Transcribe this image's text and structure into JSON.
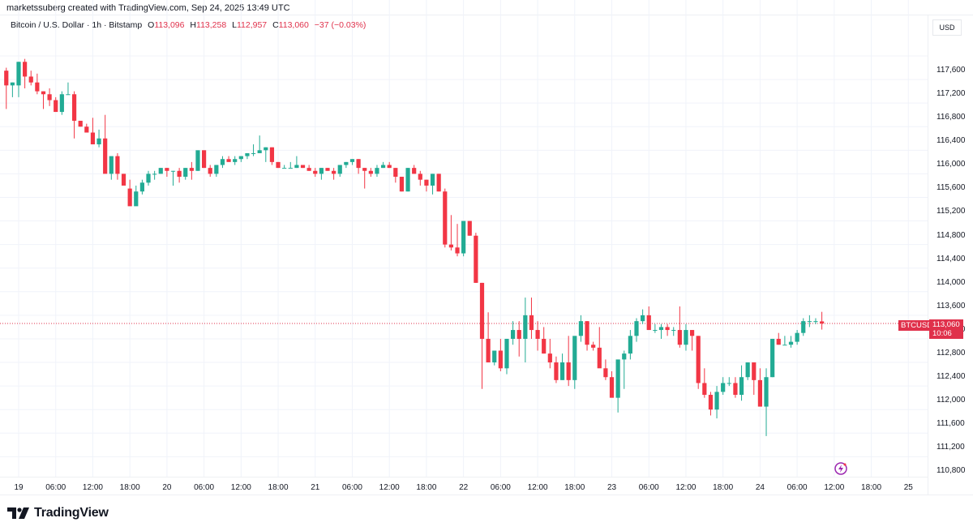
{
  "header": {
    "credit": "marketssuberg created with TradingView.com, Sep 24, 2025 13:49 UTC"
  },
  "legend": {
    "symbol": "Bitcoin / U.S. Dollar · 1h · Bitstamp",
    "o_label": "O",
    "o_value": "113,096",
    "h_label": "H",
    "h_value": "113,258",
    "l_label": "L",
    "l_value": "112,957",
    "c_label": "C",
    "c_value": "113,060",
    "change": "−37 (−0.03%)"
  },
  "price_axis": {
    "currency": "USD",
    "ticks": [
      "117,600",
      "117,200",
      "116,800",
      "116,400",
      "116,000",
      "115,600",
      "115,200",
      "114,800",
      "114,400",
      "114,000",
      "113,600",
      "113,200",
      "112,800",
      "112,400",
      "112,000",
      "111,600",
      "111,200",
      "110,800"
    ]
  },
  "time_axis": {
    "ticks": [
      "19",
      "06:00",
      "12:00",
      "18:00",
      "20",
      "06:00",
      "12:00",
      "18:00",
      "21",
      "06:00",
      "12:00",
      "18:00",
      "22",
      "06:00",
      "12:00",
      "18:00",
      "23",
      "06:00",
      "12:00",
      "18:00",
      "24",
      "06:00",
      "12:00",
      "18:00",
      "25"
    ]
  },
  "last_price": {
    "symbol": "BTCUSD",
    "price": "113,060",
    "countdown": "10:06"
  },
  "branding": {
    "logo_text": "TradingView"
  },
  "colors": {
    "up": "#22ab94",
    "down": "#f23645",
    "price_line": "#e0314b",
    "grid": "#f0f3fa"
  },
  "chart_data": {
    "type": "candlestick",
    "title": "Bitcoin / U.S. Dollar · 1h · Bitstamp",
    "xlabel": "",
    "ylabel": "USD",
    "ylim": [
      110600,
      117900
    ],
    "grid": true,
    "interval": "1h",
    "x_start": "Sep 18 22:00",
    "ohlc": [
      [
        117350,
        117400,
        116700,
        117100
      ],
      [
        117100,
        117150,
        116900,
        117150
      ],
      [
        117100,
        117500,
        116900,
        117500
      ],
      [
        117500,
        117550,
        117050,
        117250
      ],
      [
        117250,
        117350,
        117100,
        117150
      ],
      [
        117150,
        117300,
        116950,
        117000
      ],
      [
        117000,
        117000,
        116700,
        116950
      ],
      [
        116950,
        117050,
        116750,
        116850
      ],
      [
        116850,
        116900,
        116750,
        116650
      ],
      [
        116650,
        117000,
        116600,
        116950
      ],
      [
        116950,
        117150,
        116950,
        116950
      ],
      [
        116950,
        117000,
        116200,
        116500
      ],
      [
        116500,
        116500,
        116400,
        116400
      ],
      [
        116400,
        116450,
        116300,
        116300
      ],
      [
        116300,
        116550,
        116200,
        116100
      ],
      [
        116100,
        116350,
        116050,
        116200
      ],
      [
        116200,
        116600,
        115800,
        115600
      ],
      [
        115600,
        115800,
        115500,
        115900
      ],
      [
        115900,
        115950,
        115500,
        115600
      ],
      [
        115600,
        115600,
        115450,
        115400
      ],
      [
        115350,
        115500,
        115200,
        115050
      ],
      [
        115050,
        115400,
        115100,
        115300
      ],
      [
        115300,
        115500,
        115250,
        115450
      ],
      [
        115450,
        115650,
        115400,
        115600
      ],
      [
        115600,
        115650,
        115500,
        115600
      ],
      [
        115600,
        115700,
        115600,
        115700
      ],
      [
        115700,
        115700,
        115550,
        115650
      ],
      [
        115650,
        115650,
        115400,
        115650
      ],
      [
        115650,
        115700,
        115450,
        115550
      ],
      [
        115550,
        115700,
        115500,
        115700
      ],
      [
        115700,
        115800,
        115500,
        115650
      ],
      [
        115650,
        115700,
        115650,
        116000
      ],
      [
        116000,
        116000,
        115700,
        115700
      ],
      [
        115700,
        115750,
        115550,
        115600
      ],
      [
        115600,
        115700,
        115550,
        115750
      ],
      [
        115750,
        115900,
        115700,
        115850
      ],
      [
        115850,
        115900,
        115850,
        115800
      ],
      [
        115800,
        115900,
        115750,
        115850
      ],
      [
        115850,
        115900,
        115800,
        115900
      ],
      [
        115900,
        115950,
        115850,
        115950
      ],
      [
        115950,
        116100,
        115900,
        115950
      ],
      [
        115950,
        116250,
        115950,
        116000
      ],
      [
        116000,
        116050,
        115800,
        116050
      ],
      [
        116050,
        116050,
        115750,
        115800
      ],
      [
        115800,
        115800,
        115700,
        115700
      ],
      [
        115700,
        115750,
        115700,
        115700
      ],
      [
        115700,
        115800,
        115700,
        115700
      ],
      [
        115700,
        115900,
        115700,
        115750
      ],
      [
        115750,
        115750,
        115700,
        115700
      ],
      [
        115700,
        115750,
        115650,
        115650
      ],
      [
        115650,
        115700,
        115550,
        115600
      ],
      [
        115600,
        115700,
        115500,
        115700
      ],
      [
        115700,
        115700,
        115650,
        115650
      ],
      [
        115650,
        115700,
        115500,
        115600
      ],
      [
        115600,
        115700,
        115550,
        115750
      ],
      [
        115750,
        115800,
        115700,
        115800
      ],
      [
        115800,
        115850,
        115750,
        115850
      ],
      [
        115850,
        115850,
        115600,
        115700
      ],
      [
        115700,
        115700,
        115350,
        115650
      ],
      [
        115650,
        115700,
        115550,
        115600
      ],
      [
        115600,
        115750,
        115550,
        115700
      ],
      [
        115700,
        115800,
        115700,
        115750
      ],
      [
        115750,
        115800,
        115700,
        115700
      ],
      [
        115700,
        115700,
        115450,
        115550
      ],
      [
        115550,
        115550,
        115300,
        115300
      ],
      [
        115300,
        115700,
        115300,
        115700
      ],
      [
        115700,
        115750,
        115600,
        115600
      ],
      [
        115600,
        115650,
        115400,
        115500
      ],
      [
        115500,
        115500,
        115300,
        115400
      ],
      [
        115400,
        115600,
        115250,
        115600
      ],
      [
        115600,
        115600,
        115300,
        115300
      ],
      [
        115300,
        115350,
        114350,
        114400
      ],
      [
        114400,
        114900,
        114300,
        114350
      ],
      [
        114350,
        114750,
        114200,
        114250
      ],
      [
        114250,
        114800,
        114200,
        114800
      ],
      [
        114800,
        114800,
        114550,
        114550
      ],
      [
        114550,
        114600,
        113750,
        113750
      ],
      [
        113750,
        113750,
        111950,
        112800
      ],
      [
        112800,
        113250,
        112600,
        112400
      ],
      [
        112400,
        112550,
        112350,
        112600
      ],
      [
        112600,
        112800,
        112250,
        112300
      ],
      [
        112300,
        112800,
        112200,
        112800
      ],
      [
        112800,
        113100,
        112700,
        112950
      ],
      [
        112950,
        113100,
        112500,
        112800
      ],
      [
        112800,
        113500,
        112400,
        113200
      ],
      [
        113200,
        113500,
        112800,
        112950
      ],
      [
        112950,
        113100,
        112600,
        112800
      ],
      [
        112800,
        113000,
        112550,
        112550
      ],
      [
        112550,
        112800,
        112300,
        112400
      ],
      [
        112400,
        112500,
        112050,
        112100
      ],
      [
        112100,
        112550,
        112100,
        112400
      ],
      [
        112400,
        112850,
        112000,
        112100
      ],
      [
        112100,
        112700,
        111950,
        112850
      ],
      [
        112850,
        113200,
        112750,
        113100
      ],
      [
        113100,
        113100,
        112600,
        112700
      ],
      [
        112700,
        112750,
        112600,
        112650
      ],
      [
        112650,
        113000,
        112500,
        112300
      ],
      [
        112300,
        112450,
        112100,
        112150
      ],
      [
        112150,
        112250,
        111850,
        111800
      ],
      [
        111800,
        112300,
        111550,
        112450
      ],
      [
        112450,
        112600,
        111950,
        112550
      ],
      [
        112550,
        112950,
        112450,
        112850
      ],
      [
        112850,
        113150,
        112750,
        113100
      ],
      [
        113100,
        113300,
        113050,
        113200
      ],
      [
        113200,
        113350,
        113100,
        112950
      ],
      [
        112950,
        113050,
        112900,
        112950
      ],
      [
        112950,
        113050,
        112800,
        113000
      ],
      [
        113000,
        113050,
        112850,
        112950
      ],
      [
        112950,
        113000,
        112850,
        112950
      ],
      [
        112950,
        113350,
        112650,
        112700
      ],
      [
        112700,
        113050,
        112600,
        112950
      ],
      [
        112950,
        112950,
        112600,
        112850
      ],
      [
        112850,
        112850,
        111950,
        112050
      ],
      [
        112050,
        112300,
        111800,
        111850
      ],
      [
        111850,
        111900,
        111500,
        111600
      ],
      [
        111600,
        112000,
        111450,
        111900
      ],
      [
        111900,
        112150,
        111850,
        112050
      ],
      [
        112050,
        112150,
        112000,
        112050
      ],
      [
        112050,
        112150,
        111800,
        111850
      ],
      [
        111850,
        112350,
        111750,
        112150
      ],
      [
        112150,
        112400,
        112100,
        112400
      ],
      [
        112400,
        112400,
        111850,
        112100
      ],
      [
        112100,
        112300,
        111650,
        111650
      ],
      [
        111650,
        112300,
        111150,
        112150
      ],
      [
        112150,
        112800,
        112150,
        112800
      ],
      [
        112800,
        112900,
        112700,
        112700
      ],
      [
        112700,
        112850,
        112700,
        112700
      ],
      [
        112700,
        112850,
        112650,
        112750
      ],
      [
        112750,
        112950,
        112700,
        112900
      ],
      [
        112900,
        113150,
        112850,
        113100
      ],
      [
        113100,
        113200,
        113000,
        113100
      ],
      [
        113100,
        113150,
        113050,
        113100
      ],
      [
        113096,
        113258,
        112957,
        113060
      ]
    ]
  }
}
